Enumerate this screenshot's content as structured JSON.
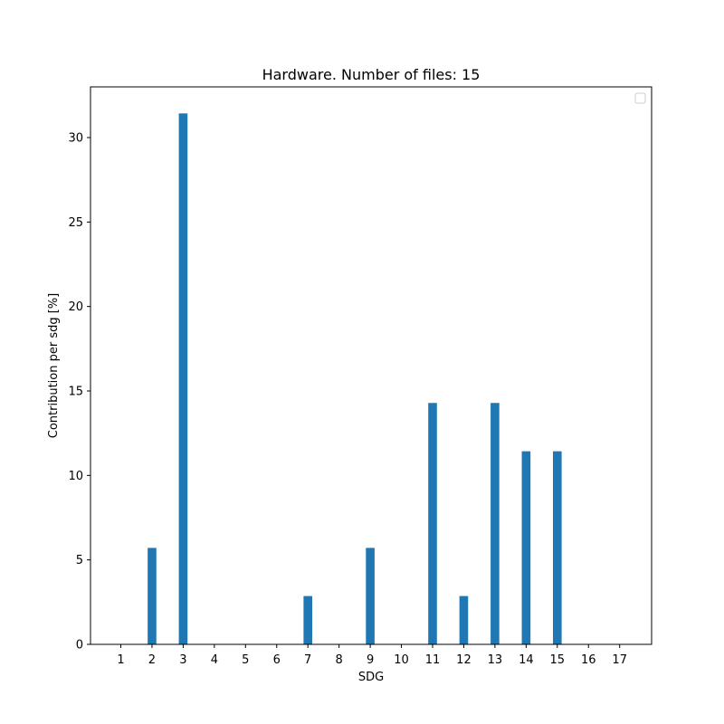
{
  "chart_data": {
    "type": "bar",
    "title": "Hardware. Number of files: 15",
    "xlabel": "SDG",
    "ylabel": "Contribution per sdg [%]",
    "categories": [
      "1",
      "2",
      "3",
      "4",
      "5",
      "6",
      "7",
      "8",
      "9",
      "10",
      "11",
      "12",
      "13",
      "14",
      "15",
      "16",
      "17"
    ],
    "values": [
      0,
      5.71,
      31.43,
      0,
      0,
      0,
      2.86,
      0,
      5.71,
      0,
      14.29,
      2.86,
      14.29,
      11.43,
      11.43,
      0,
      0
    ],
    "yticks": [
      0,
      5,
      10,
      15,
      20,
      25,
      30
    ],
    "ylim": [
      0,
      33
    ],
    "grid": false,
    "legend": "top-right (empty)",
    "colors": {
      "bar": "#1f77b4",
      "axis": "#000000",
      "background": "#ffffff"
    }
  }
}
